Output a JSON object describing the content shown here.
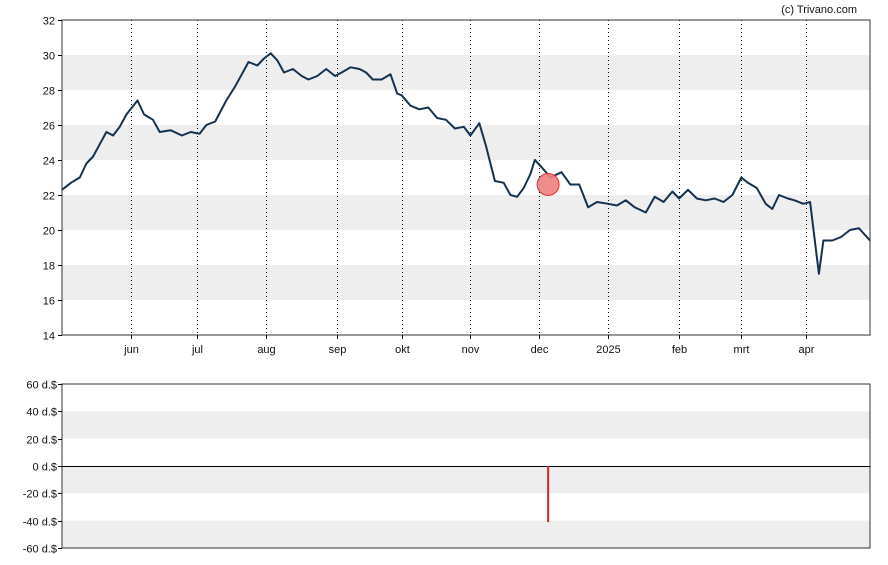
{
  "credit": "(c) Trivano.com",
  "colors": {
    "line": "#13324f",
    "band": "#eeeeee",
    "marker_fill": "#f08080",
    "marker_stroke": "#e03030",
    "bar": "#e02020",
    "axis": "#000000",
    "grid": "#000000"
  },
  "chart_data": [
    {
      "type": "line",
      "panel": "price",
      "ylim": [
        14,
        32
      ],
      "yticks": [
        14,
        16,
        18,
        20,
        22,
        24,
        26,
        28,
        30,
        32
      ],
      "ytick_labels": [
        "14",
        "16",
        "18",
        "20",
        "22",
        "24",
        "26",
        "28",
        "30",
        "32"
      ],
      "grid": "vertical dotted at month labels; alternating horizontal bands",
      "xlim": [
        "2024-05-01",
        "2025-04-30"
      ],
      "xticks": [
        {
          "date": "2024-06-01",
          "label": "jun"
        },
        {
          "date": "2024-07-01",
          "label": "jul"
        },
        {
          "date": "2024-08-01",
          "label": "aug"
        },
        {
          "date": "2024-09-02",
          "label": "sep"
        },
        {
          "date": "2024-10-01",
          "label": "okt"
        },
        {
          "date": "2024-11-01",
          "label": "nov"
        },
        {
          "date": "2024-12-02",
          "label": "dec"
        },
        {
          "date": "2025-01-02",
          "label": "2025"
        },
        {
          "date": "2025-02-03",
          "label": "feb"
        },
        {
          "date": "2025-03-03",
          "label": "mrt"
        },
        {
          "date": "2025-04-01",
          "label": "apr"
        }
      ],
      "series": [
        {
          "points": [
            [
              "2024-05-01",
              22.3
            ],
            [
              "2024-05-05",
              22.7
            ],
            [
              "2024-05-09",
              23.0
            ],
            [
              "2024-05-12",
              23.8
            ],
            [
              "2024-05-15",
              24.2
            ],
            [
              "2024-05-18",
              24.9
            ],
            [
              "2024-05-21",
              25.6
            ],
            [
              "2024-05-24",
              25.4
            ],
            [
              "2024-05-27",
              25.9
            ],
            [
              "2024-05-30",
              26.6
            ],
            [
              "2024-06-04",
              27.4
            ],
            [
              "2024-06-07",
              26.6
            ],
            [
              "2024-06-11",
              26.3
            ],
            [
              "2024-06-14",
              25.6
            ],
            [
              "2024-06-19",
              25.7
            ],
            [
              "2024-06-24",
              25.4
            ],
            [
              "2024-06-28",
              25.6
            ],
            [
              "2024-07-02",
              25.5
            ],
            [
              "2024-07-05",
              26.0
            ],
            [
              "2024-07-09",
              26.2
            ],
            [
              "2024-07-14",
              27.4
            ],
            [
              "2024-07-18",
              28.2
            ],
            [
              "2024-07-21",
              28.9
            ],
            [
              "2024-07-24",
              29.6
            ],
            [
              "2024-07-28",
              29.4
            ],
            [
              "2024-07-31",
              29.8
            ],
            [
              "2024-08-03",
              30.1
            ],
            [
              "2024-08-06",
              29.7
            ],
            [
              "2024-08-09",
              29.0
            ],
            [
              "2024-08-13",
              29.2
            ],
            [
              "2024-08-17",
              28.8
            ],
            [
              "2024-08-20",
              28.6
            ],
            [
              "2024-08-24",
              28.8
            ],
            [
              "2024-08-28",
              29.2
            ],
            [
              "2024-09-01",
              28.8
            ],
            [
              "2024-09-04",
              29.0
            ],
            [
              "2024-09-08",
              29.3
            ],
            [
              "2024-09-12",
              29.2
            ],
            [
              "2024-09-15",
              29.0
            ],
            [
              "2024-09-18",
              28.6
            ],
            [
              "2024-09-22",
              28.6
            ],
            [
              "2024-09-26",
              28.9
            ],
            [
              "2024-09-29",
              27.8
            ],
            [
              "2024-10-01",
              27.7
            ],
            [
              "2024-10-05",
              27.1
            ],
            [
              "2024-10-09",
              26.9
            ],
            [
              "2024-10-13",
              27.0
            ],
            [
              "2024-10-17",
              26.4
            ],
            [
              "2024-10-21",
              26.3
            ],
            [
              "2024-10-25",
              25.8
            ],
            [
              "2024-10-29",
              25.9
            ],
            [
              "2024-11-01",
              25.4
            ],
            [
              "2024-11-05",
              26.1
            ],
            [
              "2024-11-08",
              24.8
            ],
            [
              "2024-11-12",
              22.8
            ],
            [
              "2024-11-16",
              22.7
            ],
            [
              "2024-11-19",
              22.0
            ],
            [
              "2024-11-22",
              21.9
            ],
            [
              "2024-11-25",
              22.4
            ],
            [
              "2024-11-28",
              23.2
            ],
            [
              "2024-11-30",
              24.0
            ],
            [
              "2024-12-03",
              23.6
            ],
            [
              "2024-12-07",
              23.0
            ],
            [
              "2024-12-12",
              23.3
            ],
            [
              "2024-12-16",
              22.6
            ],
            [
              "2024-12-20",
              22.6
            ],
            [
              "2024-12-24",
              21.3
            ],
            [
              "2024-12-28",
              21.6
            ],
            [
              "2025-01-02",
              21.5
            ],
            [
              "2025-01-06",
              21.4
            ],
            [
              "2025-01-10",
              21.7
            ],
            [
              "2025-01-14",
              21.3
            ],
            [
              "2025-01-19",
              21.0
            ],
            [
              "2025-01-23",
              21.9
            ],
            [
              "2025-01-27",
              21.6
            ],
            [
              "2025-01-31",
              22.2
            ],
            [
              "2025-02-03",
              21.8
            ],
            [
              "2025-02-07",
              22.3
            ],
            [
              "2025-02-11",
              21.8
            ],
            [
              "2025-02-15",
              21.7
            ],
            [
              "2025-02-19",
              21.8
            ],
            [
              "2025-02-23",
              21.6
            ],
            [
              "2025-02-27",
              22.0
            ],
            [
              "2025-03-03",
              23.0
            ],
            [
              "2025-03-06",
              22.7
            ],
            [
              "2025-03-10",
              22.4
            ],
            [
              "2025-03-14",
              21.5
            ],
            [
              "2025-03-17",
              21.2
            ],
            [
              "2025-03-20",
              22.0
            ],
            [
              "2025-03-24",
              21.8
            ],
            [
              "2025-03-27",
              21.7
            ],
            [
              "2025-03-31",
              21.5
            ],
            [
              "2025-04-03",
              21.6
            ],
            [
              "2025-04-07",
              17.5
            ],
            [
              "2025-04-09",
              19.4
            ],
            [
              "2025-04-13",
              19.4
            ],
            [
              "2025-04-17",
              19.6
            ],
            [
              "2025-04-21",
              20.0
            ],
            [
              "2025-04-25",
              20.1
            ],
            [
              "2025-04-30",
              19.4
            ]
          ]
        }
      ],
      "marker": {
        "date": "2024-12-06",
        "value": 22.6
      }
    },
    {
      "type": "bar",
      "panel": "dividend",
      "ylim": [
        -60,
        60
      ],
      "yticks": [
        -60,
        -40,
        -20,
        0,
        20,
        40,
        60
      ],
      "ytick_labels": [
        "-60 d.$",
        "-40 d.$",
        "-20 d.$",
        "0 d.$",
        "20 d.$",
        "40 d.$",
        "60 d.$"
      ],
      "bars": [
        {
          "date": "2024-12-06",
          "value": -41
        }
      ]
    }
  ]
}
